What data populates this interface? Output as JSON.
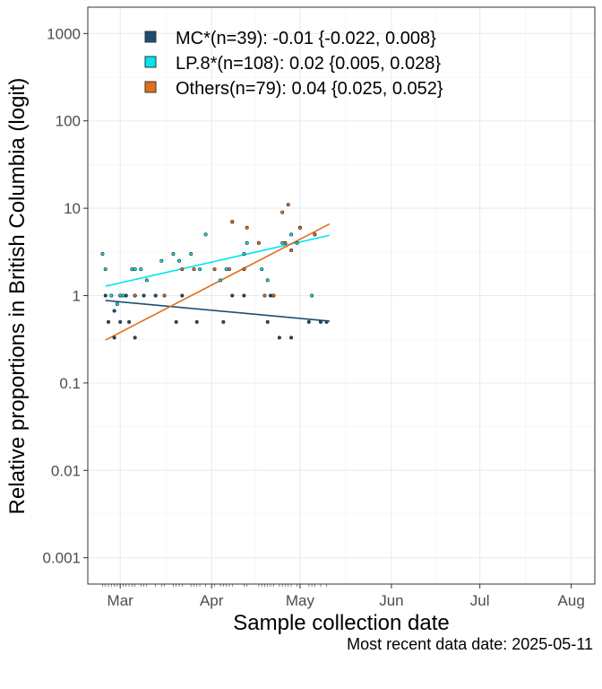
{
  "caption": "Most recent data date: 2025-05-11",
  "chart_data": {
    "type": "scatter",
    "xlabel": "Sample collection date",
    "ylabel": "Relative proportions in British Columbia (logit)",
    "yscale": "log",
    "ylim": [
      0.0005,
      2000
    ],
    "xlim": [
      "2025-02-18",
      "2025-08-09"
    ],
    "x_ticks": [
      "2025-03-01",
      "2025-04-01",
      "2025-05-01",
      "2025-06-01",
      "2025-07-01",
      "2025-08-01"
    ],
    "x_tick_labels": [
      "Mar",
      "Apr",
      "May",
      "Jun",
      "Jul",
      "Aug"
    ],
    "y_ticks": [
      0.001,
      0.01,
      0.1,
      1,
      10,
      100,
      1000
    ],
    "y_tick_labels": [
      "0.001",
      "0.01",
      "0.1",
      "1",
      "10",
      "100",
      "1000"
    ],
    "grid": true,
    "legend_position": "top-left",
    "series": [
      {
        "name": "MC*(n=39): -0.01 {-0.022, 0.008}",
        "color": "#1b4f72",
        "fit": [
          {
            "x": "2025-02-24",
            "y": 0.88
          },
          {
            "x": "2025-05-11",
            "y": 0.51
          }
        ],
        "points": [
          {
            "x": "2025-02-24",
            "y": 1
          },
          {
            "x": "2025-02-25",
            "y": 0.5
          },
          {
            "x": "2025-02-27",
            "y": 0.67
          },
          {
            "x": "2025-02-27",
            "y": 0.33
          },
          {
            "x": "2025-03-01",
            "y": 1
          },
          {
            "x": "2025-03-01",
            "y": 0.5
          },
          {
            "x": "2025-03-03",
            "y": 1
          },
          {
            "x": "2025-03-04",
            "y": 0.5
          },
          {
            "x": "2025-03-06",
            "y": 0.33
          },
          {
            "x": "2025-03-06",
            "y": 1
          },
          {
            "x": "2025-03-09",
            "y": 1
          },
          {
            "x": "2025-03-13",
            "y": 1
          },
          {
            "x": "2025-03-20",
            "y": 0.5
          },
          {
            "x": "2025-03-22",
            "y": 1
          },
          {
            "x": "2025-03-27",
            "y": 0.5
          },
          {
            "x": "2025-04-05",
            "y": 0.5
          },
          {
            "x": "2025-04-08",
            "y": 1
          },
          {
            "x": "2025-04-12",
            "y": 1
          },
          {
            "x": "2025-04-20",
            "y": 0.5
          },
          {
            "x": "2025-04-21",
            "y": 1
          },
          {
            "x": "2025-04-24",
            "y": 0.33
          },
          {
            "x": "2025-04-28",
            "y": 0.33
          },
          {
            "x": "2025-05-04",
            "y": 0.5
          },
          {
            "x": "2025-05-08",
            "y": 0.5
          },
          {
            "x": "2025-05-10",
            "y": 0.5
          }
        ]
      },
      {
        "name": "LP.8*(n=108): 0.02 {0.005, 0.028}",
        "color": "#00e5ee",
        "fit": [
          {
            "x": "2025-02-24",
            "y": 1.28
          },
          {
            "x": "2025-05-11",
            "y": 4.9
          }
        ],
        "points": [
          {
            "x": "2025-02-23",
            "y": 3
          },
          {
            "x": "2025-02-24",
            "y": 2
          },
          {
            "x": "2025-02-26",
            "y": 1
          },
          {
            "x": "2025-02-28",
            "y": 0.8
          },
          {
            "x": "2025-03-01",
            "y": 1
          },
          {
            "x": "2025-03-02",
            "y": 1
          },
          {
            "x": "2025-03-05",
            "y": 2
          },
          {
            "x": "2025-03-06",
            "y": 2
          },
          {
            "x": "2025-03-08",
            "y": 2
          },
          {
            "x": "2025-03-10",
            "y": 1.5
          },
          {
            "x": "2025-03-15",
            "y": 2.5
          },
          {
            "x": "2025-03-19",
            "y": 3
          },
          {
            "x": "2025-03-21",
            "y": 2.5
          },
          {
            "x": "2025-03-25",
            "y": 3
          },
          {
            "x": "2025-03-28",
            "y": 2
          },
          {
            "x": "2025-03-30",
            "y": 5
          },
          {
            "x": "2025-04-04",
            "y": 1.5
          },
          {
            "x": "2025-04-06",
            "y": 2
          },
          {
            "x": "2025-04-08",
            "y": 7
          },
          {
            "x": "2025-04-12",
            "y": 3
          },
          {
            "x": "2025-04-13",
            "y": 4
          },
          {
            "x": "2025-04-18",
            "y": 2
          },
          {
            "x": "2025-04-20",
            "y": 1.5
          },
          {
            "x": "2025-04-22",
            "y": 1
          },
          {
            "x": "2025-04-25",
            "y": 4
          },
          {
            "x": "2025-04-28",
            "y": 5
          },
          {
            "x": "2025-04-30",
            "y": 4
          },
          {
            "x": "2025-05-01",
            "y": 6
          },
          {
            "x": "2025-05-05",
            "y": 1
          },
          {
            "x": "2025-05-06",
            "y": 5
          }
        ]
      },
      {
        "name": "Others(n=79): 0.04 {0.025, 0.052}",
        "color": "#e0701c",
        "fit": [
          {
            "x": "2025-02-24",
            "y": 0.31
          },
          {
            "x": "2025-05-11",
            "y": 6.6
          }
        ],
        "points": [
          {
            "x": "2025-03-06",
            "y": 1
          },
          {
            "x": "2025-03-16",
            "y": 1
          },
          {
            "x": "2025-03-22",
            "y": 2
          },
          {
            "x": "2025-03-26",
            "y": 2
          },
          {
            "x": "2025-04-02",
            "y": 2
          },
          {
            "x": "2025-04-07",
            "y": 2
          },
          {
            "x": "2025-04-08",
            "y": 7
          },
          {
            "x": "2025-04-12",
            "y": 2
          },
          {
            "x": "2025-04-13",
            "y": 6
          },
          {
            "x": "2025-04-17",
            "y": 4
          },
          {
            "x": "2025-04-19",
            "y": 1
          },
          {
            "x": "2025-04-22",
            "y": 1
          },
          {
            "x": "2025-04-25",
            "y": 9
          },
          {
            "x": "2025-04-26",
            "y": 4
          },
          {
            "x": "2025-04-27",
            "y": 11
          },
          {
            "x": "2025-04-28",
            "y": 3.3
          },
          {
            "x": "2025-05-01",
            "y": 6
          },
          {
            "x": "2025-05-06",
            "y": 5
          }
        ]
      }
    ]
  }
}
